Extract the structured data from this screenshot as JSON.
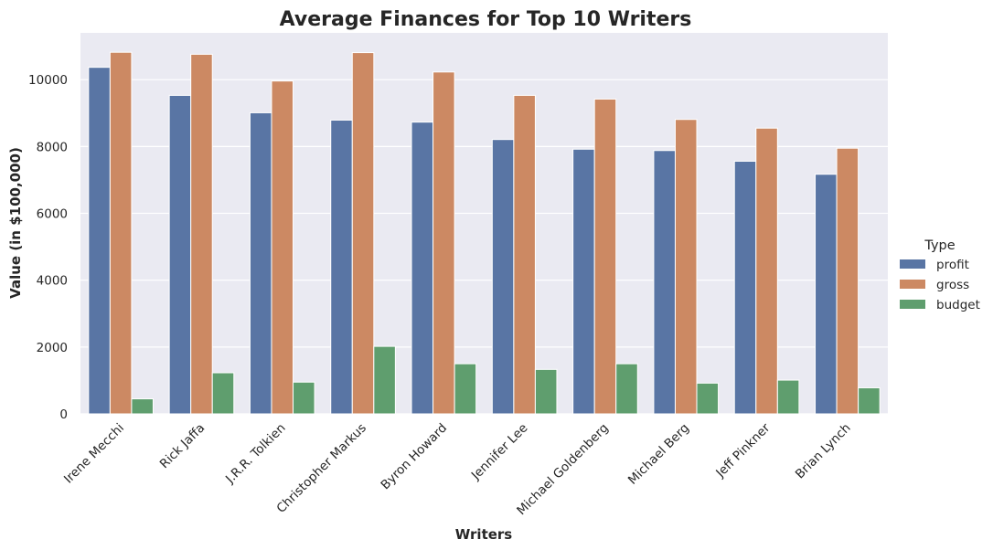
{
  "chart_data": {
    "type": "bar",
    "title": "Average Finances for Top 10 Writers",
    "xlabel": "Writers",
    "ylabel": "Value (in $100,000)",
    "categories": [
      "Irene Mecchi",
      "Rick Jaffa",
      "J.R.R. Tolkien",
      "Christopher Markus",
      "Byron Howard",
      "Jennifer Lee",
      "Michael Goldenberg",
      "Michael Berg",
      "Jeff Pinkner",
      "Brian Lynch"
    ],
    "series": [
      {
        "name": "profit",
        "color": "#5975a4",
        "values": [
          10370,
          9530,
          9010,
          8790,
          8730,
          8210,
          7920,
          7880,
          7560,
          7170
        ]
      },
      {
        "name": "gross",
        "color": "#cc8963",
        "values": [
          10820,
          10760,
          9960,
          10810,
          10230,
          9530,
          9420,
          8810,
          8550,
          7950
        ]
      },
      {
        "name": "budget",
        "color": "#5f9e6e",
        "values": [
          450,
          1230,
          950,
          2020,
          1500,
          1330,
          1500,
          920,
          1010,
          780
        ]
      }
    ],
    "ylim": [
      0,
      11400
    ],
    "yticks": [
      0,
      2000,
      4000,
      6000,
      8000,
      10000
    ],
    "grid": true,
    "legend": {
      "title": "Type",
      "position": "right"
    },
    "background": "#eaeaf2"
  }
}
